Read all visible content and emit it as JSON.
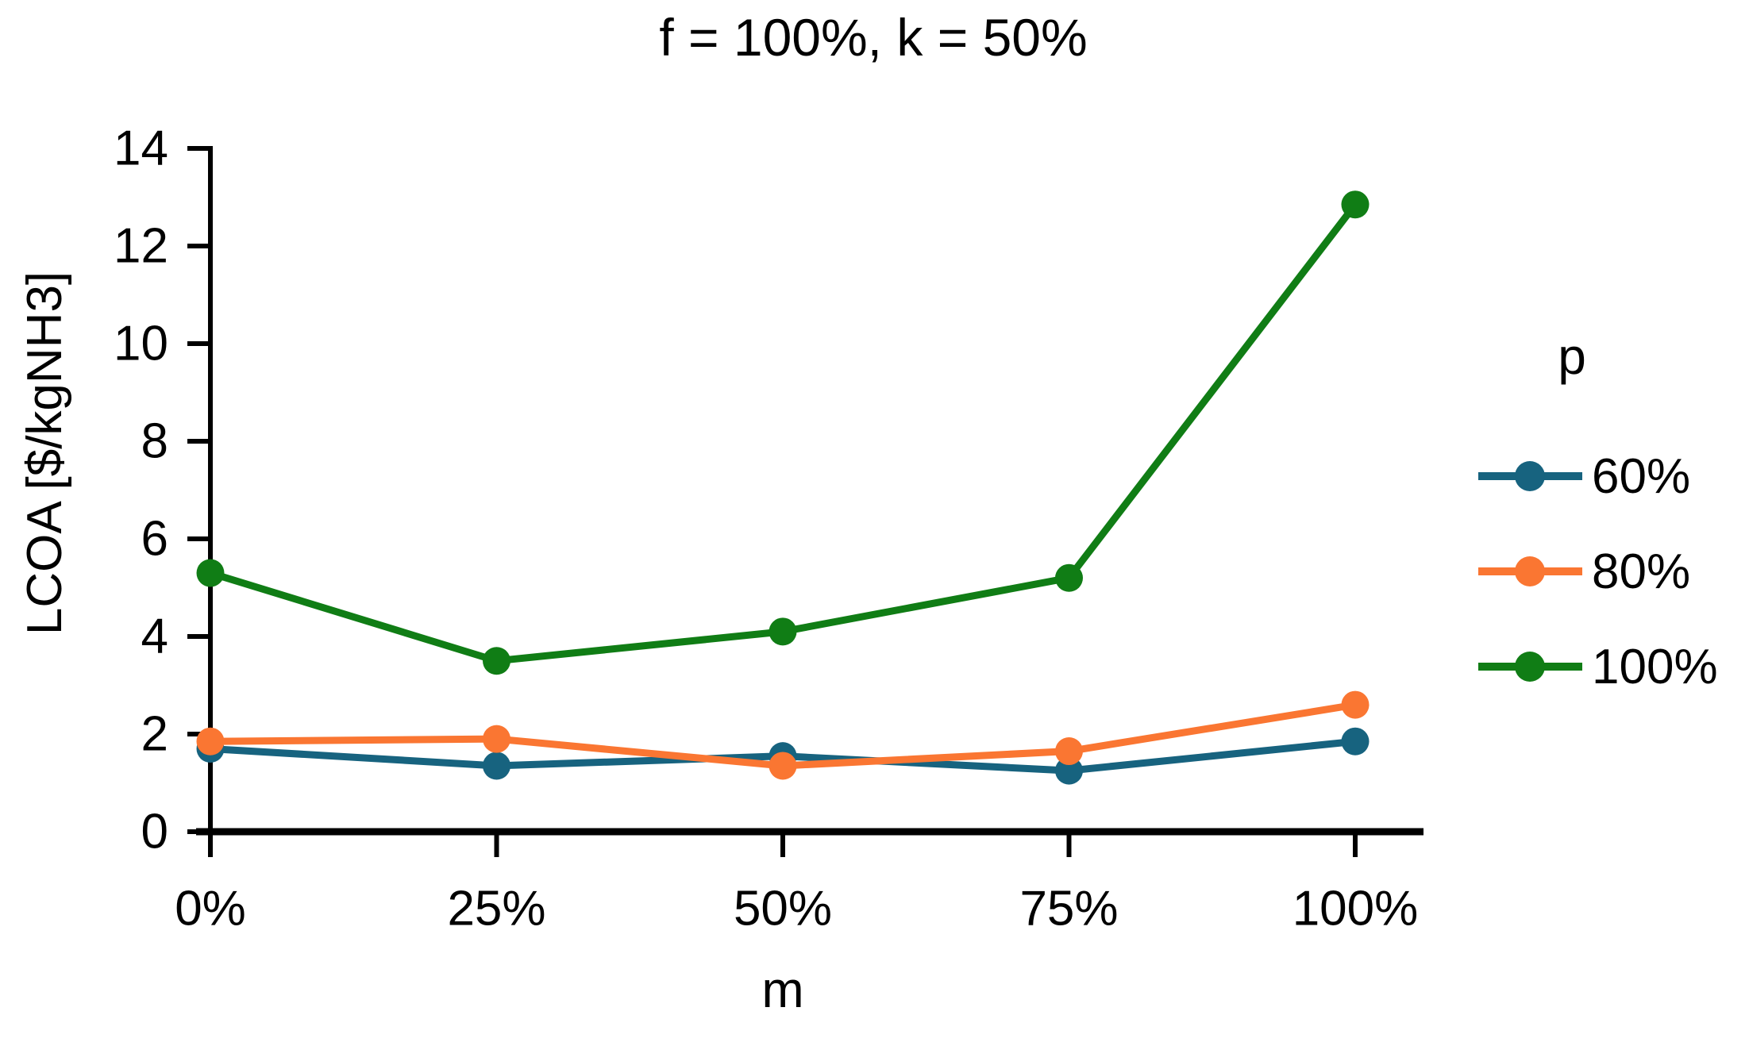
{
  "title": "f = 100%, k = 50%",
  "legend": {
    "title": "p",
    "entries": [
      "60%",
      "80%",
      "100%"
    ]
  },
  "axes": {
    "y_title": "LCOA [$/kgNH3]",
    "x_title": "m",
    "y_ticks": [
      "0",
      "2",
      "4",
      "6",
      "8",
      "10",
      "12",
      "14"
    ],
    "x_ticks": [
      "0%",
      "25%",
      "50%",
      "75%",
      "100%"
    ]
  },
  "colors": {
    "series_60": "#17637f",
    "series_80": "#fa7632",
    "series_100": "#107d15",
    "axis": "#000000"
  },
  "chart_data": {
    "type": "line",
    "title": "f = 100%, k = 50%",
    "xlabel": "m",
    "ylabel": "LCOA [$/kgNH3]",
    "categories": [
      "0%",
      "25%",
      "50%",
      "75%",
      "100%"
    ],
    "series": [
      {
        "name": "60%",
        "color": "#17637f",
        "values": [
          1.7,
          1.35,
          1.55,
          1.25,
          1.85
        ]
      },
      {
        "name": "80%",
        "color": "#fa7632",
        "values": [
          1.85,
          1.9,
          1.35,
          1.65,
          2.6
        ]
      },
      {
        "name": "100%",
        "color": "#107d15",
        "values": [
          5.3,
          3.5,
          4.1,
          5.2,
          12.85
        ]
      }
    ],
    "ylim": [
      0,
      14
    ],
    "ytick_step": 2,
    "grid": false,
    "markers": "circle",
    "legend_title": "p",
    "legend_position": "right"
  }
}
